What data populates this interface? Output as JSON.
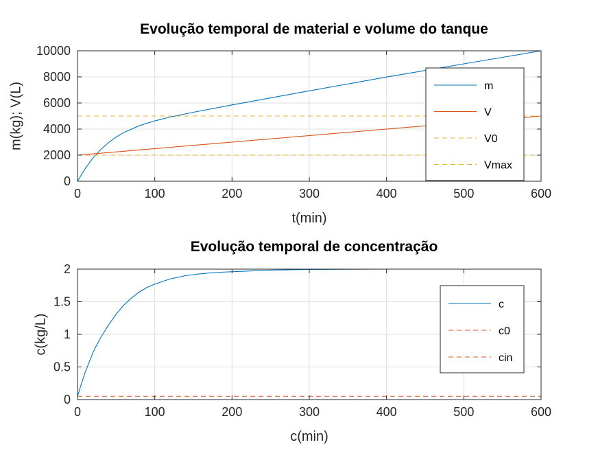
{
  "chart_data": [
    {
      "type": "line",
      "title": "Evolução temporal de material e volume do tanque",
      "xlabel": "t(min)",
      "ylabel": "m(kg); V(L)",
      "xlim": [
        0,
        600
      ],
      "ylim": [
        0,
        10000
      ],
      "xticks": [
        "0",
        "100",
        "200",
        "300",
        "400",
        "500",
        "600"
      ],
      "yticks": [
        "0",
        "2000",
        "4000",
        "6000",
        "8000",
        "10000"
      ],
      "grid": true,
      "legend_position": "top-right",
      "series": [
        {
          "name": "m",
          "color": "#0072BD",
          "dash": "solid",
          "x": [
            0,
            10,
            20,
            30,
            40,
            50,
            60,
            80,
            100,
            120,
            150,
            200,
            250,
            300,
            350,
            400,
            450,
            500,
            550,
            600
          ],
          "y": [
            0,
            980,
            1780,
            2430,
            2960,
            3390,
            3740,
            4260,
            4630,
            4920,
            5290,
            5850,
            6390,
            6930,
            7460,
            7990,
            8490,
            9000,
            9500,
            10000
          ]
        },
        {
          "name": "V",
          "color": "#D95319",
          "dash": "solid",
          "x": [
            0,
            600
          ],
          "y": [
            2000,
            5000
          ]
        },
        {
          "name": "V0",
          "color": "#EDB120",
          "dash": "dashed",
          "x": [
            0,
            600
          ],
          "y": [
            5000,
            5000
          ]
        },
        {
          "name": "Vmax",
          "color": "#EDB120",
          "dash": "dashed",
          "x": [
            0,
            600
          ],
          "y": [
            2000,
            2000
          ]
        }
      ]
    },
    {
      "type": "line",
      "title": "Evolução temporal de concentração",
      "xlabel": "c(min)",
      "ylabel": "c(kg/L)",
      "xlim": [
        0,
        600
      ],
      "ylim": [
        0,
        2
      ],
      "xticks": [
        "0",
        "100",
        "200",
        "300",
        "400",
        "500",
        "600"
      ],
      "yticks": [
        "0",
        "0.5",
        "1",
        "1.5",
        "2"
      ],
      "grid": true,
      "legend_position": "top-right",
      "series": [
        {
          "name": "c",
          "color": "#0072BD",
          "dash": "solid",
          "x": [
            0,
            5,
            10,
            15,
            20,
            25,
            30,
            40,
            50,
            60,
            70,
            80,
            90,
            100,
            120,
            140,
            160,
            180,
            200,
            250,
            300,
            350,
            400,
            500,
            600
          ],
          "y": [
            0.05,
            0.24,
            0.42,
            0.57,
            0.72,
            0.84,
            0.95,
            1.14,
            1.31,
            1.45,
            1.56,
            1.65,
            1.72,
            1.77,
            1.85,
            1.9,
            1.93,
            1.95,
            1.96,
            1.985,
            1.995,
            1.998,
            2.0,
            2.0,
            2.0
          ]
        },
        {
          "name": "c0",
          "color": "#D95319",
          "dash": "dashed",
          "x": [
            0,
            600
          ],
          "y": [
            0.05,
            0.05
          ]
        },
        {
          "name": "cin",
          "color": "#D95319",
          "dash": "dashed",
          "x": [
            0,
            600
          ],
          "y": [
            2,
            2
          ]
        }
      ]
    }
  ]
}
